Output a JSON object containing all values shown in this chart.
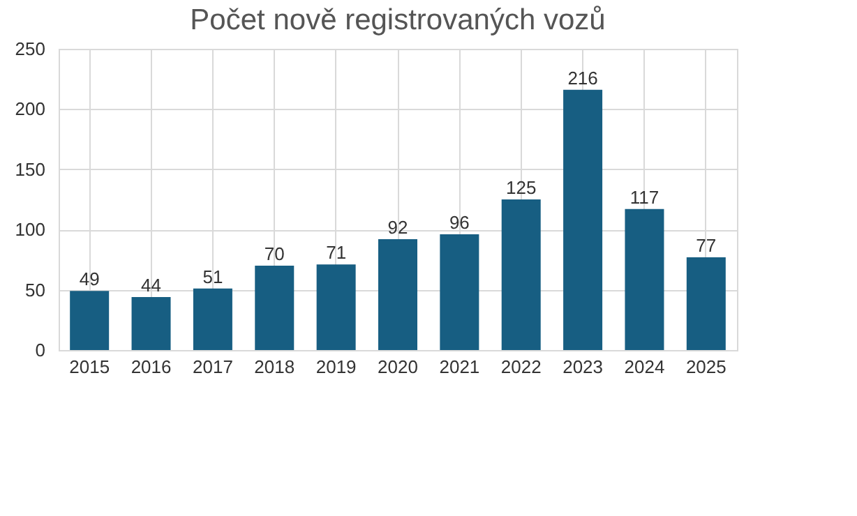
{
  "chart_data": {
    "type": "bar",
    "title": "Počet nově registrovaných vozů",
    "categories": [
      "2015",
      "2016",
      "2017",
      "2018",
      "2019",
      "2020",
      "2021",
      "2022",
      "2023",
      "2024",
      "2025"
    ],
    "values": [
      49,
      44,
      51,
      70,
      71,
      92,
      96,
      125,
      216,
      117,
      77
    ],
    "color": "#175e82",
    "ylim": [
      0,
      250
    ],
    "yticks": [
      0,
      50,
      100,
      150,
      200,
      250
    ],
    "grid": true,
    "data_labels": true
  }
}
